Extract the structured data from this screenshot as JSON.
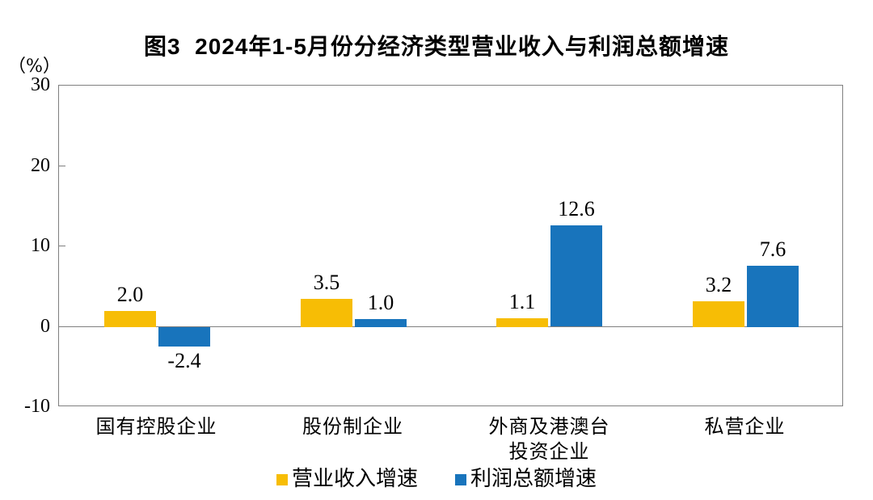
{
  "figure": {
    "title": "图3  2024年1-5月份分经济类型营业收入与利润总额增速",
    "unit_label": "（%）"
  },
  "chart_data": {
    "type": "bar",
    "title": "图3  2024年1-5月份分经济类型营业收入与利润总额增速",
    "ylabel": "（%）",
    "xlabel": "",
    "categories": [
      "国有控股企业",
      "股份制企业",
      "外商及港澳台\n投资企业",
      "私营企业"
    ],
    "series": [
      {
        "name": "营业收入增速",
        "color": "#F7BD05",
        "values": [
          2.0,
          3.5,
          1.1,
          3.2
        ]
      },
      {
        "name": "利润总额增速",
        "color": "#1874BC",
        "values": [
          -2.4,
          1.0,
          12.6,
          7.6
        ]
      }
    ],
    "ylim": [
      -10,
      30
    ],
    "yticks": [
      30,
      20,
      10,
      0,
      -10
    ],
    "grid": false,
    "zero_line": true,
    "legend_position": "bottom",
    "axis_color": "#7f7f7f"
  }
}
